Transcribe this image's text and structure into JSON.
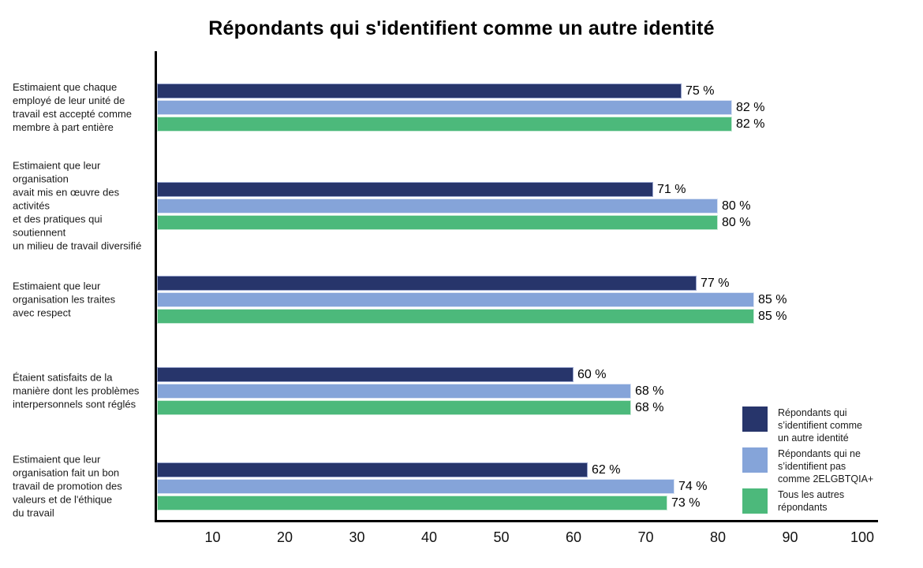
{
  "chart_data": {
    "type": "bar",
    "orientation": "horizontal",
    "title": "Répondants qui s'identifient comme un autre identité",
    "categories": [
      "Estimaient que chaque\nemployé de leur unité de\ntravail est accepté comme\nmembre à part entière",
      "Estimaient que leur organisation\navait mis en œuvre des activités\net des pratiques qui soutiennent\nun milieu de travail diversifié",
      "Estimaient que leur\norganisation les traites\navec respect",
      "Étaient satisfaits de la\nmanière dont les problèmes\ninterpersonnels sont réglés",
      "Estimaient que leur\norganisation fait un bon\ntravail de promotion des\nvaleurs et de l'éthique\ndu travail"
    ],
    "series": [
      {
        "name": "Répondants qui s'identifient comme un autre identité",
        "color": "#27356B",
        "edge_color": "#9AA6CE",
        "values": [
          75,
          71,
          77,
          60,
          62
        ]
      },
      {
        "name": "Répondants qui ne s'identifient pas comme 2ELGBTQIA+",
        "color": "#85A4D9",
        "edge_color": "#DAE3F3",
        "values": [
          82,
          80,
          85,
          68,
          74
        ]
      },
      {
        "name": "Tous les autres répondants",
        "color": "#4CB97B",
        "edge_color": "#C8EAD6",
        "values": [
          82,
          80,
          85,
          68,
          73
        ]
      }
    ],
    "value_suffix": " %",
    "x_ticks": [
      10,
      20,
      30,
      40,
      50,
      60,
      70,
      80,
      90,
      100
    ],
    "xlim": [
      0,
      100
    ],
    "grid": false,
    "legend_position": "bottom-right"
  },
  "legend": {
    "items": [
      {
        "label": "Répondants qui\ns’identifient comme\nun autre identité"
      },
      {
        "label": "Répondants qui ne\ns’identifient pas\ncomme 2ELGBTQIA+"
      },
      {
        "label": "Tous les autres\nrépondants"
      }
    ]
  }
}
